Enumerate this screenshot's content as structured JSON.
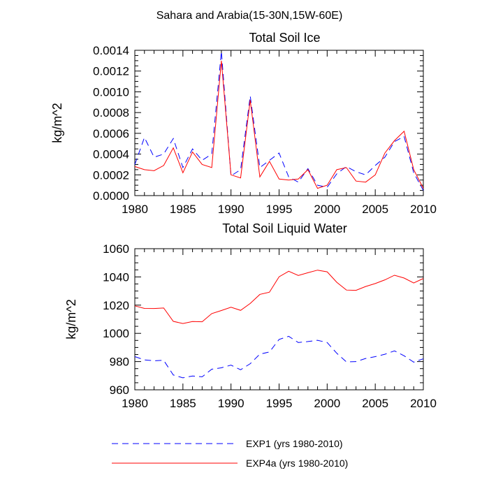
{
  "figure": {
    "title": "Sahara and Arabia(15-30N,15W-60E)"
  },
  "chart_data": [
    {
      "type": "line",
      "title": "Total Soil Ice",
      "xlabel": "",
      "ylabel": "kg/m^2",
      "xlim": [
        1980,
        2010
      ],
      "ylim": [
        0,
        0.0014
      ],
      "xticks": [
        1980,
        1985,
        1990,
        1995,
        2000,
        2005,
        2010
      ],
      "xtick_labels": [
        "1980",
        "1985",
        "1990",
        "1995",
        "2000",
        "2005",
        "2010"
      ],
      "yticks": [
        0,
        0.0002,
        0.0004,
        0.0006,
        0.0008,
        0.001,
        0.0012,
        0.0014
      ],
      "ytick_labels": [
        "0.0000",
        "0.0002",
        "0.0004",
        "0.0006",
        "0.0008",
        "0.0010",
        "0.0012",
        "0.0014"
      ],
      "grid": false,
      "x": [
        1980,
        1981,
        1982,
        1983,
        1984,
        1985,
        1986,
        1987,
        1988,
        1989,
        1990,
        1991,
        1992,
        1993,
        1994,
        1995,
        1996,
        1997,
        1998,
        1999,
        2000,
        2001,
        2002,
        2003,
        2004,
        2005,
        2006,
        2007,
        2008,
        2009,
        2010
      ],
      "series": [
        {
          "name": "EXP1 (yrs 1980-2010)",
          "color": "#0000ff",
          "dash": "dashed",
          "values": [
            0.0003,
            0.00056,
            0.00037,
            0.0004,
            0.00055,
            0.00027,
            0.00045,
            0.00034,
            0.0004,
            0.00139,
            0.00019,
            0.00025,
            0.00096,
            0.00027,
            0.00034,
            0.00041,
            0.00018,
            0.00013,
            0.00026,
            0.0001,
            8e-05,
            0.00021,
            0.00028,
            0.00023,
            0.0002,
            0.00029,
            0.00037,
            0.00052,
            0.00057,
            0.00022,
            5e-05
          ]
        },
        {
          "name": "EXP4a (yrs 1980-2010)",
          "color": "#ff0000",
          "dash": "solid",
          "values": [
            0.00028,
            0.00025,
            0.00024,
            0.00029,
            0.00046,
            0.00022,
            0.00042,
            0.0003,
            0.00027,
            0.0013,
            0.0002,
            0.00017,
            0.00092,
            0.00018,
            0.00033,
            0.00016,
            0.00015,
            0.00016,
            0.00025,
            7e-05,
            0.0001,
            0.00025,
            0.00027,
            0.00014,
            0.00013,
            0.0002,
            0.00041,
            0.00053,
            0.00062,
            0.00025,
            7e-05
          ]
        }
      ]
    },
    {
      "type": "line",
      "title": "Total Soil Liquid Water",
      "xlabel": "",
      "ylabel": "kg/m^2",
      "xlim": [
        1980,
        2010
      ],
      "ylim": [
        960,
        1060
      ],
      "xticks": [
        1980,
        1985,
        1990,
        1995,
        2000,
        2005,
        2010
      ],
      "xtick_labels": [
        "1980",
        "1985",
        "1990",
        "1995",
        "2000",
        "2005",
        "2010"
      ],
      "yticks": [
        960,
        980,
        1000,
        1020,
        1040,
        1060
      ],
      "ytick_labels": [
        "960",
        "980",
        "1000",
        "1020",
        "1040",
        "1060"
      ],
      "grid": false,
      "x": [
        1980,
        1981,
        1982,
        1983,
        1984,
        1985,
        1986,
        1987,
        1988,
        1989,
        1990,
        1991,
        1992,
        1993,
        1994,
        1995,
        1996,
        1997,
        1998,
        1999,
        2000,
        2001,
        2002,
        2003,
        2004,
        2005,
        2006,
        2007,
        2008,
        2009,
        2010
      ],
      "series": [
        {
          "name": "EXP1 (yrs 1980-2010)",
          "color": "#0000ff",
          "dash": "dashed",
          "values": [
            983.5,
            981.2,
            980.6,
            980.9,
            970.5,
            968.5,
            969.8,
            969.2,
            974.6,
            975.6,
            977.5,
            974.2,
            978.5,
            985.3,
            986.8,
            995.7,
            997.9,
            993.5,
            994.2,
            995.1,
            993.5,
            985.9,
            979.8,
            980.0,
            982.2,
            983.5,
            985.2,
            987.6,
            984.1,
            979.6,
            982.0
          ]
        },
        {
          "name": "EXP4a (yrs 1980-2010)",
          "color": "#ff0000",
          "dash": "solid",
          "values": [
            1019.5,
            1017.7,
            1017.6,
            1018.0,
            1008.5,
            1007.0,
            1008.4,
            1008.2,
            1014.0,
            1016.2,
            1018.5,
            1016.3,
            1021.2,
            1027.6,
            1029.2,
            1040.1,
            1044.0,
            1041.0,
            1043.0,
            1044.8,
            1043.6,
            1036.2,
            1030.7,
            1030.5,
            1033.2,
            1035.3,
            1037.9,
            1041.2,
            1039.2,
            1035.7,
            1038.9
          ]
        }
      ]
    }
  ],
  "legend": {
    "placement": "bottom-center",
    "items": [
      {
        "label": "EXP1 (yrs 1980-2010)",
        "color": "#0000ff",
        "dash": "dashed"
      },
      {
        "label": "EXP4a (yrs 1980-2010)",
        "color": "#ff0000",
        "dash": "solid"
      }
    ]
  }
}
